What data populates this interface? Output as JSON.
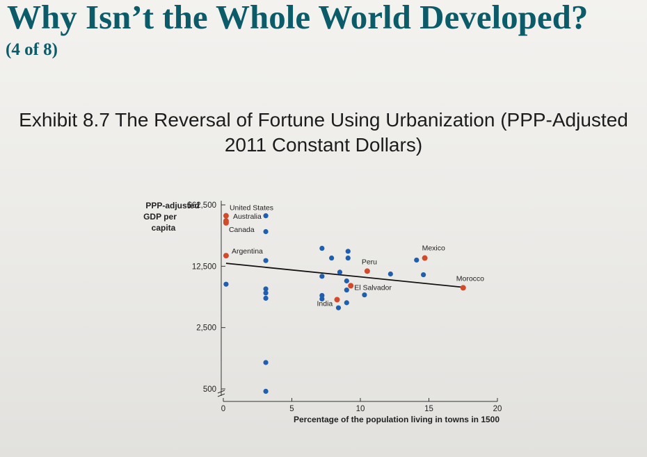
{
  "slide": {
    "title": "Why Isn’t the Whole World Developed?",
    "subtitle": "(4 of 8)",
    "exhibit_line1": "Exhibit 8.7 The Reversal of Fortune Using Urbanization (PPP-Adjusted",
    "exhibit_line2": "2011 Constant Dollars)"
  },
  "colors": {
    "title": "#0b5b68",
    "highlight": "#d24a2c",
    "other": "#1f5fae",
    "axis": "#333333",
    "trend": "#111111"
  },
  "chart_data": {
    "type": "scatter",
    "title": "The Reversal of Fortune Using Urbanization (PPP-Adjusted 2011 Constant Dollars)",
    "xlabel": "Percentage of the population living in towns in 1500",
    "ylabel": "PPP-adjusted GDP per capita",
    "ylabel_lines": [
      "PPP-adjusted",
      "GDP per",
      "capita"
    ],
    "y_scale": "log",
    "xlim": [
      0,
      20
    ],
    "ylim": [
      400,
      62500
    ],
    "x_ticks": [
      0,
      5,
      10,
      15,
      20
    ],
    "x_tick_labels": [
      "0",
      "5",
      "10",
      "15",
      "20"
    ],
    "y_ticks": [
      500,
      2500,
      12500,
      62500
    ],
    "y_tick_labels": [
      "500",
      "2,500",
      "12,500",
      "$62,500"
    ],
    "grid": false,
    "trendline": {
      "x": [
        0.2,
        17.5
      ],
      "y": [
        13500,
        7200
      ]
    },
    "labeled_points": [
      {
        "name": "United States",
        "x": 0.2,
        "y": 47000
      },
      {
        "name": "Australia",
        "x": 0.2,
        "y": 41000
      },
      {
        "name": "Canada",
        "x": 0.2,
        "y": 39000
      },
      {
        "name": "Argentina",
        "x": 0.2,
        "y": 16500
      },
      {
        "name": "Peru",
        "x": 10.5,
        "y": 11000
      },
      {
        "name": "El Salvador",
        "x": 9.3,
        "y": 7500
      },
      {
        "name": "India",
        "x": 8.3,
        "y": 5200
      },
      {
        "name": "Mexico",
        "x": 14.7,
        "y": 15500
      },
      {
        "name": "Morocco",
        "x": 17.5,
        "y": 7100
      }
    ],
    "other_points": [
      {
        "x": 3.1,
        "y": 47000
      },
      {
        "x": 3.1,
        "y": 31000
      },
      {
        "x": 3.1,
        "y": 14500
      },
      {
        "x": 0.2,
        "y": 7800
      },
      {
        "x": 3.1,
        "y": 6900
      },
      {
        "x": 3.1,
        "y": 6200
      },
      {
        "x": 3.1,
        "y": 5400
      },
      {
        "x": 3.1,
        "y": 1000
      },
      {
        "x": 3.1,
        "y": 470
      },
      {
        "x": 7.2,
        "y": 20000
      },
      {
        "x": 7.2,
        "y": 9600
      },
      {
        "x": 7.2,
        "y": 5800
      },
      {
        "x": 7.2,
        "y": 5300
      },
      {
        "x": 7.9,
        "y": 15500
      },
      {
        "x": 8.5,
        "y": 10700
      },
      {
        "x": 8.4,
        "y": 4200
      },
      {
        "x": 9.1,
        "y": 18500
      },
      {
        "x": 9.1,
        "y": 15500
      },
      {
        "x": 9.0,
        "y": 8500
      },
      {
        "x": 9.0,
        "y": 6700
      },
      {
        "x": 9.0,
        "y": 4800
      },
      {
        "x": 10.3,
        "y": 5900
      },
      {
        "x": 12.2,
        "y": 10200
      },
      {
        "x": 14.1,
        "y": 14700
      },
      {
        "x": 14.6,
        "y": 10000
      }
    ]
  }
}
